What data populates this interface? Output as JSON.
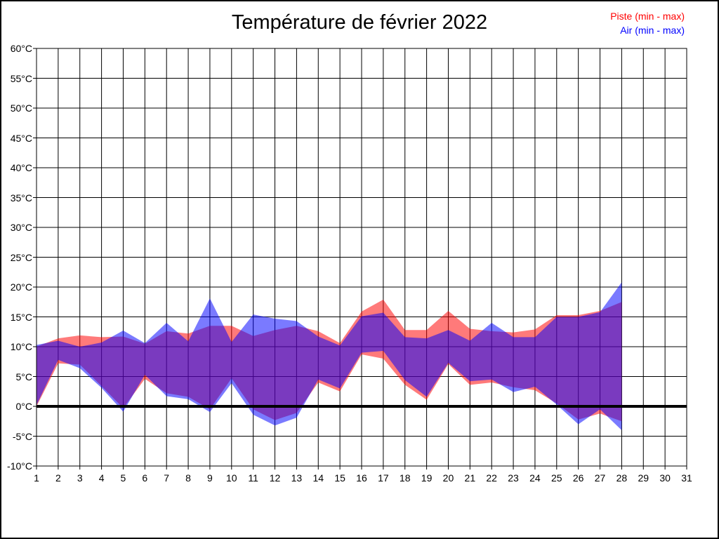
{
  "page": {
    "title": "Température de février 2022"
  },
  "legend": {
    "piste_label": "Piste (min - max)",
    "air_label": "Air (min - max)",
    "piste_color": "#ff0000",
    "air_color": "#0000ff"
  },
  "chart_data": {
    "type": "area",
    "subtype": "min-max-range-bands",
    "title": "Température de février 2022",
    "xlabel": "",
    "ylabel": "",
    "xlim": [
      1,
      31
    ],
    "ylim": [
      -10,
      60
    ],
    "grid": true,
    "y_grid_step": 5,
    "x_grid_step": 1,
    "zero_line": true,
    "legend_position": "top-right",
    "x_axis_ticks": [
      "1",
      "2",
      "3",
      "4",
      "5",
      "6",
      "7",
      "8",
      "9",
      "10",
      "11",
      "12",
      "13",
      "14",
      "15",
      "16",
      "17",
      "18",
      "19",
      "20",
      "21",
      "22",
      "23",
      "24",
      "25",
      "26",
      "27",
      "28",
      "29",
      "30",
      "31"
    ],
    "y_axis_ticks": [
      "60°C",
      "55°C",
      "50°C",
      "45°C",
      "40°C",
      "35°C",
      "30°C",
      "25°C",
      "20°C",
      "15°C",
      "10°C",
      "5°C",
      "0°C",
      "-5°C",
      "-10°C"
    ],
    "x": [
      1,
      2,
      3,
      4,
      5,
      6,
      7,
      8,
      9,
      10,
      11,
      12,
      13,
      14,
      15,
      16,
      17,
      18,
      19,
      20,
      21,
      22,
      23,
      24,
      25,
      26,
      27,
      28
    ],
    "series": [
      {
        "name": "Piste (min - max)",
        "fill": "rgba(255,0,0,0.52)",
        "min": [
          0,
          7.2,
          7,
          3.4,
          -0.3,
          4.6,
          2.2,
          1.6,
          -0.5,
          4.7,
          -0.5,
          -2.3,
          -1.1,
          4,
          2.5,
          8.7,
          8,
          3.6,
          1.1,
          7.1,
          3.6,
          4,
          3.2,
          2.7,
          0.5,
          -2.2,
          -1.2,
          -2.5
        ],
        "max": [
          10,
          11.4,
          11.9,
          11.6,
          11.7,
          10.5,
          12.6,
          12.2,
          13.5,
          13.5,
          11.8,
          12.8,
          13.5,
          12.6,
          10.6,
          15.9,
          17.9,
          12.8,
          12.8,
          16,
          13,
          12.6,
          12.4,
          12.9,
          15.3,
          15.3,
          16,
          17.5
        ]
      },
      {
        "name": "Air (min - max)",
        "fill": "rgba(0,0,255,0.52)",
        "min": [
          0.2,
          7.8,
          6.4,
          3.1,
          -0.9,
          5.3,
          1.7,
          1.2,
          -0.95,
          3.9,
          -1.4,
          -3.2,
          -1.9,
          4.5,
          3,
          9,
          9.3,
          4.4,
          1.6,
          7.3,
          4.2,
          4.5,
          2.4,
          3.3,
          0.3,
          -3,
          -0.5,
          -4
        ],
        "max": [
          10.3,
          11,
          10,
          10.7,
          12.7,
          10.6,
          14,
          10.9,
          18.1,
          10.8,
          15.4,
          14.7,
          14.3,
          11.7,
          10.2,
          15.1,
          15.7,
          11.6,
          11.4,
          12.8,
          11,
          14,
          11.6,
          11.6,
          15,
          15,
          15.8,
          20.8
        ]
      }
    ]
  }
}
